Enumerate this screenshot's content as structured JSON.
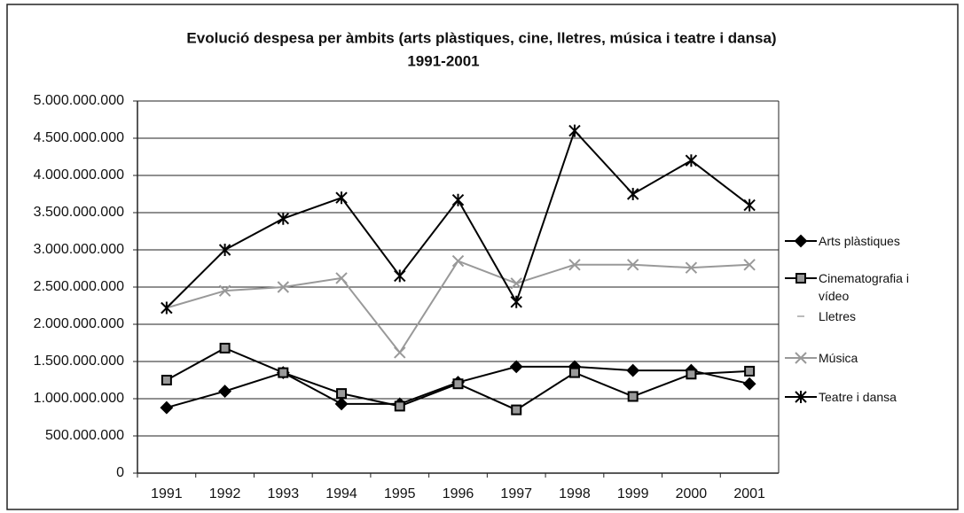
{
  "chart_data": {
    "type": "line",
    "title": [
      "Evolució despesa per àmbits (arts plàstiques, cine, lletres, música i teatre i dansa)",
      "1991-2001"
    ],
    "categories": [
      "1991",
      "1992",
      "1993",
      "1994",
      "1995",
      "1996",
      "1997",
      "1998",
      "1999",
      "2000",
      "2001"
    ],
    "series": [
      {
        "name": "Arts plàstiques",
        "color": "#000000",
        "marker": "diamond",
        "values": [
          880000000,
          1100000000,
          1350000000,
          930000000,
          930000000,
          1220000000,
          1430000000,
          1430000000,
          1380000000,
          1380000000,
          1200000000
        ]
      },
      {
        "name": "Cinematografia i vídeo",
        "color": "#000000",
        "marker": "square",
        "values": [
          1250000000,
          1680000000,
          1350000000,
          1070000000,
          900000000,
          1200000000,
          850000000,
          1350000000,
          1030000000,
          1330000000,
          1370000000
        ]
      },
      {
        "name": "Lletres",
        "color": "#bbbbbb",
        "marker": "dash",
        "values": [
          null,
          null,
          null,
          null,
          null,
          null,
          null,
          null,
          null,
          null,
          null
        ]
      },
      {
        "name": "Música",
        "color": "#999999",
        "marker": "x",
        "values": [
          2220000000,
          2450000000,
          2500000000,
          2620000000,
          1620000000,
          2850000000,
          2550000000,
          2800000000,
          2800000000,
          2760000000,
          2800000000
        ]
      },
      {
        "name": "Teatre i dansa",
        "color": "#000000",
        "marker": "star",
        "values": [
          2220000000,
          3000000000,
          3420000000,
          3700000000,
          2650000000,
          3670000000,
          2300000000,
          4600000000,
          3750000000,
          4200000000,
          3600000000
        ]
      }
    ],
    "ylim": [
      0,
      5000000000
    ],
    "yticks": [
      0,
      {
        "value": 500000000,
        "label": "500.000.000"
      },
      {
        "value": 1000000000,
        "label": "1.000.000.000"
      },
      {
        "value": 1500000000,
        "label": "1.500.000.000"
      },
      {
        "value": 2000000000,
        "label": "2.000.000.000"
      },
      {
        "value": 2500000000,
        "label": "2.500.000.000"
      },
      {
        "value": 3000000000,
        "label": "3.000.000.000"
      },
      {
        "value": 3500000000,
        "label": "3.500.000.000"
      },
      {
        "value": 4000000000,
        "label": "4.000.000.000"
      },
      {
        "value": 4500000000,
        "label": "4.500.000.000"
      },
      {
        "value": 5000000000,
        "label": "5.000.000.000"
      }
    ],
    "grid": true,
    "legend": "right"
  }
}
